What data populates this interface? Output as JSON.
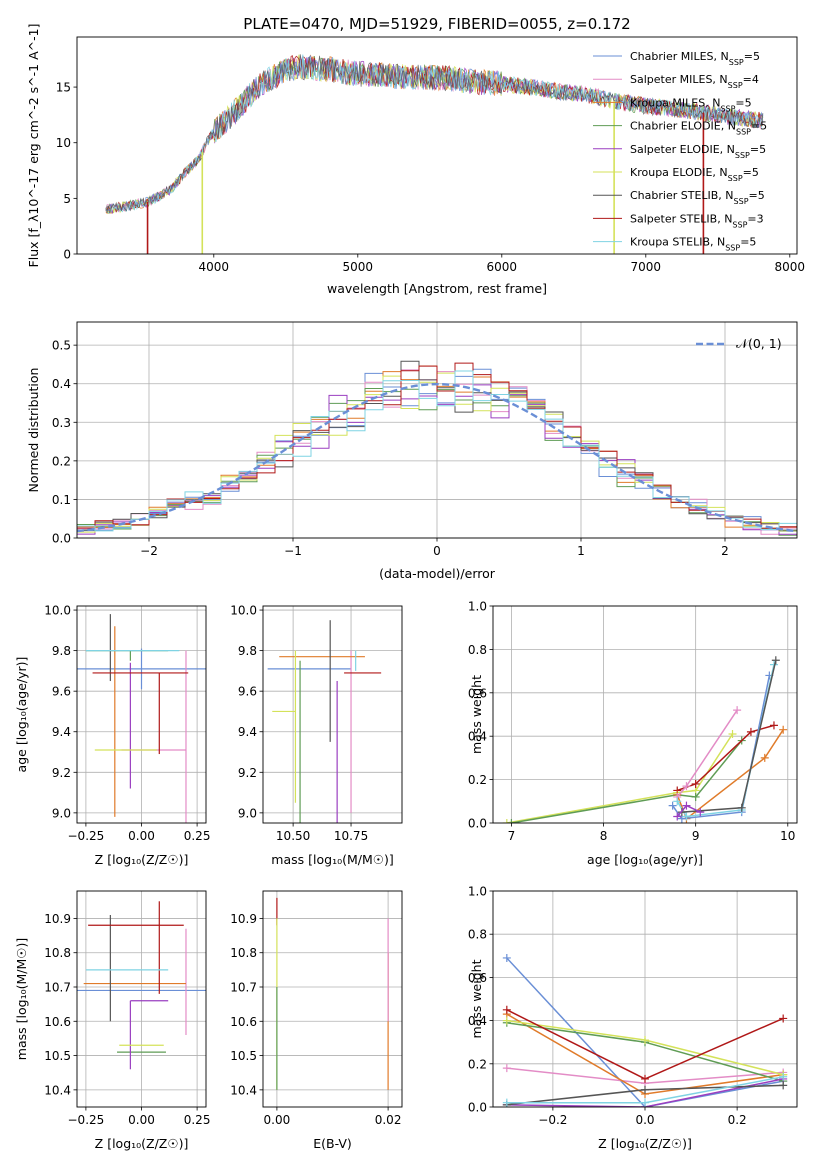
{
  "title": "PLATE=0470, MJD=51929, FIBERID=0055, z=0.172",
  "colors": {
    "Chabrier MILES": "#6a8fd6",
    "Salpeter MILES": "#e38cc6",
    "Kroupa MILES": "#e07b2a",
    "Chabrier ELODIE": "#5f9c55",
    "Salpeter ELODIE": "#9a3fc0",
    "Kroupa ELODIE": "#d4e25a",
    "Chabrier STELIB": "#555555",
    "Salpeter STELIB": "#b01818",
    "Kroupa STELIB": "#7fd3e3"
  },
  "chart_data": [
    {
      "id": "spectrum",
      "type": "line",
      "xlabel": "wavelength [Angstrom, rest frame]",
      "ylabel": "Flux [f_λ10^-17 erg cm^-2 s^-1 A^-1]",
      "xlim": [
        3050,
        8050
      ],
      "ylim": [
        0,
        19.5
      ],
      "xticks": [
        4000,
        5000,
        6000,
        7000,
        8000
      ],
      "yticks": [
        0,
        5,
        10,
        15
      ],
      "grid": false,
      "legend_position": "right",
      "legend": [
        {
          "name": "Chabrier MILES",
          "label": "Chabrier MILES, N",
          "sub": "SSP",
          "tail": "=5"
        },
        {
          "name": "Salpeter MILES",
          "label": "Salpeter MILES, N",
          "sub": "SSP",
          "tail": "=4"
        },
        {
          "name": "Kroupa MILES",
          "label": "Kroupa MILES, N",
          "sub": "SSP",
          "tail": "=5"
        },
        {
          "name": "Chabrier ELODIE",
          "label": "Chabrier ELODIE, N",
          "sub": "SSP",
          "tail": "=5"
        },
        {
          "name": "Salpeter ELODIE",
          "label": "Salpeter ELODIE, N",
          "sub": "SSP",
          "tail": "=5"
        },
        {
          "name": "Kroupa ELODIE",
          "label": "Kroupa ELODIE, N",
          "sub": "SSP",
          "tail": "=5"
        },
        {
          "name": "Chabrier STELIB",
          "label": "Chabrier STELIB, N",
          "sub": "SSP",
          "tail": "=5"
        },
        {
          "name": "Salpeter STELIB",
          "label": "Salpeter STELIB, N",
          "sub": "SSP",
          "tail": "=3"
        },
        {
          "name": "Kroupa STELIB",
          "label": "Kroupa STELIB, N",
          "sub": "SSP",
          "tail": "=5"
        }
      ],
      "continuum": {
        "x": [
          3250,
          3400,
          3550,
          3700,
          3800,
          3900,
          3950,
          4000,
          4100,
          4200,
          4300,
          4400,
          4500,
          4600,
          4800,
          5000,
          5200,
          5400,
          5600,
          5800,
          6000,
          6200,
          6400,
          6600,
          6800,
          7000,
          7200,
          7400,
          7600,
          7800
        ],
        "y": [
          4.0,
          4.3,
          4.7,
          5.8,
          7.3,
          8.6,
          10.0,
          11.0,
          12.2,
          13.5,
          15.0,
          15.8,
          16.6,
          16.8,
          16.6,
          16.2,
          16.0,
          15.9,
          15.8,
          15.5,
          15.3,
          15.0,
          14.6,
          14.3,
          13.7,
          13.3,
          13.0,
          12.7,
          12.3,
          12.0
        ]
      },
      "dips": [
        {
          "name": "Salpeter STELIB",
          "x": 3540,
          "to": 0
        },
        {
          "name": "Kroupa ELODIE",
          "x": 3920,
          "to": 0
        },
        {
          "name": "Kroupa ELODIE",
          "x": 6780,
          "to": 0
        },
        {
          "name": "Salpeter STELIB",
          "x": 7400,
          "to": 0
        }
      ]
    },
    {
      "id": "residuals",
      "type": "histogram",
      "xlabel": "(data-model)/error",
      "ylabel": "Normed distribution",
      "xlim": [
        -2.5,
        2.5
      ],
      "ylim": [
        0,
        0.56
      ],
      "xticks": [
        -2,
        -1,
        0,
        1,
        2
      ],
      "yticks": [
        0.0,
        0.1,
        0.2,
        0.3,
        0.4,
        0.5
      ],
      "grid": true,
      "legend_position": "top-right",
      "legend": [
        {
          "label": "𝒩(0, 1)",
          "style": "dashed",
          "color": "#6a8fd6"
        }
      ],
      "bin_width": 0.125,
      "curve": {
        "mean": 0,
        "sigma": 1
      }
    },
    {
      "id": "age-vs-Z",
      "type": "errorbar",
      "xlabel": "Z [log₁₀(Z/Z☉)]",
      "ylabel": "age  [log₁₀(age/yr)]",
      "xlim": [
        -0.29,
        0.29
      ],
      "ylim": [
        8.95,
        10.02
      ],
      "xticks": [
        -0.25,
        0.0,
        0.25
      ],
      "yticks": [
        9.0,
        9.2,
        9.4,
        9.6,
        9.8,
        10.0
      ],
      "grid": true,
      "points": [
        {
          "name": "Chabrier MILES",
          "x": 0.0,
          "xerr": [
            0.29,
            0.29
          ],
          "y": 9.71,
          "yerr": [
            0.1,
            0.1
          ]
        },
        {
          "name": "Salpeter MILES",
          "x": 0.2,
          "xerr": [
            0.29,
            0.0
          ],
          "y": 9.31,
          "yerr": [
            0.38,
            0.49
          ]
        },
        {
          "name": "Kroupa MILES",
          "x": -0.12,
          "xerr": [
            0.0,
            0.0
          ],
          "y": 9.5,
          "yerr": [
            0.52,
            0.42
          ]
        },
        {
          "name": "Chabrier ELODIE",
          "x": -0.05,
          "xerr": [
            0.2,
            0.17
          ],
          "y": 9.8,
          "yerr": [
            0.05,
            0.0
          ]
        },
        {
          "name": "Salpeter ELODIE",
          "x": -0.05,
          "xerr": [
            0.0,
            0.0
          ],
          "y": 9.4,
          "yerr": [
            0.28,
            0.34
          ]
        },
        {
          "name": "Kroupa ELODIE",
          "x": -0.05,
          "xerr": [
            0.16,
            0.12
          ],
          "y": 9.31,
          "yerr": [
            0.0,
            0.0
          ]
        },
        {
          "name": "Chabrier STELIB",
          "x": -0.14,
          "xerr": [
            0.0,
            0.0
          ],
          "y": 9.8,
          "yerr": [
            0.15,
            0.18
          ]
        },
        {
          "name": "Salpeter STELIB",
          "x": 0.08,
          "xerr": [
            0.3,
            0.13
          ],
          "y": 9.69,
          "yerr": [
            0.4,
            0.0
          ]
        },
        {
          "name": "Kroupa STELIB",
          "x": -0.1,
          "xerr": [
            0.15,
            0.27
          ],
          "y": 9.8,
          "yerr": [
            0.0,
            0.0
          ]
        }
      ]
    },
    {
      "id": "age-vs-mass",
      "type": "errorbar",
      "xlabel": "mass [log₁₀(M/M☉)]",
      "ylabel": "",
      "xlim": [
        10.37,
        10.97
      ],
      "ylim": [
        8.95,
        10.02
      ],
      "xticks": [
        10.5,
        10.75
      ],
      "yticks": [
        9.0,
        9.2,
        9.4,
        9.6,
        9.8,
        10.0
      ],
      "grid": true,
      "points": [
        {
          "name": "Chabrier MILES",
          "x": 10.66,
          "xerr": [
            0.27,
            0.09
          ],
          "y": 9.71,
          "yerr": [
            0.0,
            0.0
          ]
        },
        {
          "name": "Salpeter MILES",
          "x": 10.75,
          "xerr": [
            0.0,
            0.0
          ],
          "y": 9.45,
          "yerr": [
            0.45,
            0.35
          ]
        },
        {
          "name": "Kroupa MILES",
          "x": 10.66,
          "xerr": [
            0.22,
            0.15
          ],
          "y": 9.77,
          "yerr": [
            0.0,
            0.0
          ]
        },
        {
          "name": "Chabrier ELODIE",
          "x": 10.53,
          "xerr": [
            0.0,
            0.0
          ],
          "y": 9.45,
          "yerr": [
            0.5,
            0.3
          ]
        },
        {
          "name": "Salpeter ELODIE",
          "x": 10.69,
          "xerr": [
            0.0,
            0.0
          ],
          "y": 9.3,
          "yerr": [
            0.35,
            0.35
          ]
        },
        {
          "name": "Kroupa ELODIE",
          "x": 10.51,
          "xerr": [
            0.1,
            0.0
          ],
          "y": 9.5,
          "yerr": [
            0.45,
            0.3
          ]
        },
        {
          "name": "Chabrier STELIB",
          "x": 10.66,
          "xerr": [
            0.0,
            0.0
          ],
          "y": 9.85,
          "yerr": [
            0.5,
            0.1
          ]
        },
        {
          "name": "Salpeter STELIB",
          "x": 10.72,
          "xerr": [
            0.0,
            0.16
          ],
          "y": 9.69,
          "yerr": [
            0.0,
            0.0
          ]
        },
        {
          "name": "Kroupa STELIB",
          "x": 10.77,
          "xerr": [
            0.0,
            0.0
          ],
          "y": 9.8,
          "yerr": [
            0.1,
            0.0
          ]
        }
      ]
    },
    {
      "id": "weight-vs-age",
      "type": "line",
      "xlabel": "age  [log₁₀(age/yr)]",
      "ylabel": "mass weight",
      "xlim": [
        6.8,
        10.1
      ],
      "ylim": [
        0.0,
        1.0
      ],
      "xticks": [
        7,
        8,
        9,
        10
      ],
      "yticks": [
        0.0,
        0.2,
        0.4,
        0.6,
        0.8,
        1.0
      ],
      "grid": true,
      "series": [
        {
          "name": "Kroupa ELODIE",
          "x": [
            6.95,
            8.8,
            9.0,
            9.4
          ],
          "y": [
            0.0,
            0.14,
            0.15,
            0.41
          ]
        },
        {
          "name": "Chabrier ELODIE",
          "x": [
            7.0,
            8.8,
            9.0,
            9.5
          ],
          "y": [
            0.0,
            0.13,
            0.12,
            0.38
          ]
        },
        {
          "name": "Salpeter STELIB",
          "x": [
            8.8,
            9.0,
            9.6,
            9.85
          ],
          "y": [
            0.15,
            0.18,
            0.42,
            0.45
          ]
        },
        {
          "name": "Kroupa MILES",
          "x": [
            8.8,
            8.9,
            9.75,
            9.95
          ],
          "y": [
            0.13,
            0.02,
            0.3,
            0.43
          ]
        },
        {
          "name": "Salpeter MILES",
          "x": [
            8.8,
            8.9,
            9.45
          ],
          "y": [
            0.12,
            0.17,
            0.52
          ]
        },
        {
          "name": "Chabrier MILES",
          "x": [
            8.75,
            8.85,
            9.5,
            9.8
          ],
          "y": [
            0.08,
            0.02,
            0.05,
            0.68
          ]
        },
        {
          "name": "Kroupa STELIB",
          "x": [
            8.8,
            8.9,
            9.5,
            9.85
          ],
          "y": [
            0.1,
            0.03,
            0.06,
            0.73
          ]
        },
        {
          "name": "Chabrier STELIB",
          "x": [
            8.85,
            9.5,
            9.87
          ],
          "y": [
            0.05,
            0.07,
            0.75
          ]
        },
        {
          "name": "Salpeter ELODIE",
          "x": [
            8.8,
            8.9,
            9.05
          ],
          "y": [
            0.03,
            0.08,
            0.05
          ]
        }
      ]
    },
    {
      "id": "mass-vs-Z",
      "type": "errorbar",
      "xlabel": "Z [log₁₀(Z/Z☉)]",
      "ylabel": "mass [log₁₀(M/M☉)]",
      "xlim": [
        -0.29,
        0.29
      ],
      "ylim": [
        10.35,
        10.98
      ],
      "xticks": [
        -0.25,
        0.0,
        0.25
      ],
      "yticks": [
        10.4,
        10.5,
        10.6,
        10.7,
        10.8,
        10.9
      ],
      "grid": true,
      "points": [
        {
          "name": "Chabrier MILES",
          "x": 0.0,
          "xerr": [
            0.29,
            0.29
          ],
          "y": 10.69,
          "yerr": [
            0.0,
            0.0
          ]
        },
        {
          "name": "Salpeter MILES",
          "x": 0.2,
          "xerr": [
            0.0,
            0.0
          ],
          "y": 10.72,
          "yerr": [
            0.16,
            0.15
          ]
        },
        {
          "name": "Kroupa MILES",
          "x": 0.0,
          "xerr": [
            0.26,
            0.2
          ],
          "y": 10.71,
          "yerr": [
            0.0,
            0.0
          ]
        },
        {
          "name": "Chabrier ELODIE",
          "x": 0.0,
          "xerr": [
            0.11,
            0.11
          ],
          "y": 10.51,
          "yerr": [
            0.0,
            0.0
          ]
        },
        {
          "name": "Salpeter ELODIE",
          "x": -0.05,
          "xerr": [
            0.0,
            0.17
          ],
          "y": 10.66,
          "yerr": [
            0.2,
            0.0
          ]
        },
        {
          "name": "Kroupa ELODIE",
          "x": 0.0,
          "xerr": [
            0.1,
            0.1
          ],
          "y": 10.53,
          "yerr": [
            0.0,
            0.0
          ]
        },
        {
          "name": "Chabrier STELIB",
          "x": -0.14,
          "xerr": [
            0.0,
            0.0
          ],
          "y": 10.75,
          "yerr": [
            0.15,
            0.16
          ]
        },
        {
          "name": "Salpeter STELIB",
          "x": 0.08,
          "xerr": [
            0.32,
            0.11
          ],
          "y": 10.88,
          "yerr": [
            0.2,
            0.07
          ]
        },
        {
          "name": "Kroupa STELIB",
          "x": -0.1,
          "xerr": [
            0.15,
            0.22
          ],
          "y": 10.75,
          "yerr": [
            0.0,
            0.0
          ]
        }
      ]
    },
    {
      "id": "mass-vs-EBV",
      "type": "errorbar",
      "xlabel": "E(B-V)",
      "ylabel": "",
      "xlim": [
        -0.0025,
        0.0225
      ],
      "ylim": [
        10.35,
        10.98
      ],
      "xticks": [
        0.0,
        0.02
      ],
      "yticks": [
        10.4,
        10.5,
        10.6,
        10.7,
        10.8,
        10.9
      ],
      "grid": true,
      "points": [
        {
          "name": "Salpeter STELIB",
          "x": 0.0,
          "xerr": [
            0.0,
            0.0
          ],
          "y": 10.88,
          "yerr": [
            0.0,
            0.08
          ]
        },
        {
          "name": "Kroupa ELODIE",
          "x": 0.0,
          "xerr": [
            0.0,
            0.0
          ],
          "y": 10.65,
          "yerr": [
            0.25,
            0.25
          ]
        },
        {
          "name": "Chabrier ELODIE",
          "x": 0.0,
          "xerr": [
            0.0,
            0.0
          ],
          "y": 10.55,
          "yerr": [
            0.15,
            0.15
          ]
        },
        {
          "name": "Kroupa MILES",
          "x": 0.02,
          "xerr": [
            0.0,
            0.0
          ],
          "y": 10.6,
          "yerr": [
            0.2,
            0.2
          ]
        },
        {
          "name": "Salpeter MILES",
          "x": 0.02,
          "xerr": [
            0.0,
            0.0
          ],
          "y": 10.75,
          "yerr": [
            0.15,
            0.15
          ]
        }
      ]
    },
    {
      "id": "weight-vs-Z",
      "type": "line",
      "xlabel": "Z [log₁₀(Z/Z☉)]",
      "ylabel": "mass weight",
      "xlim": [
        -0.33,
        0.33
      ],
      "ylim": [
        0.0,
        1.0
      ],
      "xticks": [
        -0.2,
        0.0,
        0.2
      ],
      "yticks": [
        0.0,
        0.2,
        0.4,
        0.6,
        0.8,
        1.0
      ],
      "grid": true,
      "series": [
        {
          "name": "Chabrier MILES",
          "x": [
            -0.3,
            0.0,
            0.3
          ],
          "y": [
            0.69,
            0.0,
            0.12
          ]
        },
        {
          "name": "Salpeter MILES",
          "x": [
            -0.3,
            0.0,
            0.3
          ],
          "y": [
            0.18,
            0.11,
            0.16
          ]
        },
        {
          "name": "Kroupa MILES",
          "x": [
            -0.3,
            0.0,
            0.3
          ],
          "y": [
            0.43,
            0.06,
            0.15
          ]
        },
        {
          "name": "Chabrier ELODIE",
          "x": [
            -0.3,
            0.0,
            0.3
          ],
          "y": [
            0.39,
            0.3,
            0.12
          ]
        },
        {
          "name": "Salpeter ELODIE",
          "x": [
            -0.3,
            0.0,
            0.3
          ],
          "y": [
            0.01,
            0.0,
            0.13
          ]
        },
        {
          "name": "Kroupa ELODIE",
          "x": [
            -0.3,
            0.0,
            0.3
          ],
          "y": [
            0.4,
            0.31,
            0.15
          ]
        },
        {
          "name": "Chabrier STELIB",
          "x": [
            -0.3,
            0.0,
            0.3
          ],
          "y": [
            0.01,
            0.08,
            0.1
          ]
        },
        {
          "name": "Salpeter STELIB",
          "x": [
            -0.3,
            0.0,
            0.3
          ],
          "y": [
            0.45,
            0.13,
            0.41
          ]
        },
        {
          "name": "Kroupa STELIB",
          "x": [
            -0.3,
            0.0,
            0.3
          ],
          "y": [
            0.02,
            0.02,
            0.14
          ]
        }
      ]
    }
  ]
}
